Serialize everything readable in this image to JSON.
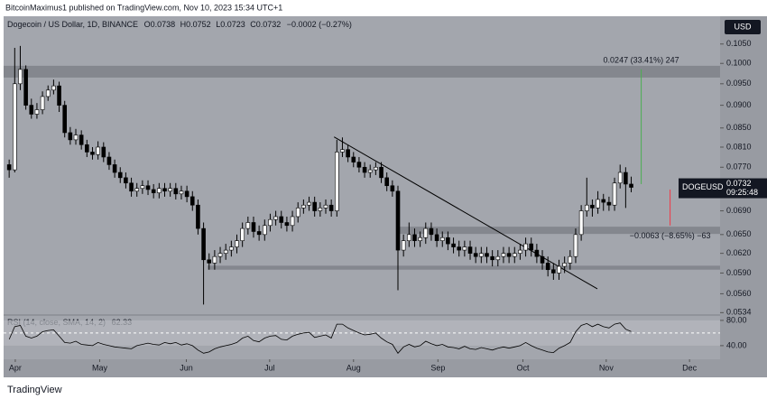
{
  "header": {
    "published": "BitcoinMaximus1 published on TradingView.com, Nov 10, 2023 15:34 UTC+1"
  },
  "chart_data": {
    "type": "candlestick",
    "symbol": "Dogecoin / US Dollar, 1D, BINANCE",
    "ohlc_labels": [
      "O",
      "H",
      "L",
      "C"
    ],
    "change": "−0.0002 (−0.27%)",
    "currency": "USD",
    "ticker": "DOGEUSD",
    "countdown": "09:25:48",
    "log_scale": true,
    "ylim": [
      0.0532,
      0.1126
    ],
    "yticks": [
      {
        "value": 0.105,
        "label": "0.1050"
      },
      {
        "value": 0.1,
        "label": "0.1000"
      },
      {
        "value": 0.095,
        "label": "0.0950"
      },
      {
        "value": 0.09,
        "label": "0.0900"
      },
      {
        "value": 0.085,
        "label": "0.0850"
      },
      {
        "value": 0.081,
        "label": "0.0810"
      },
      {
        "value": 0.077,
        "label": "0.0770"
      },
      {
        "value": 0.069,
        "label": "0.0690"
      },
      {
        "value": 0.065,
        "label": "0.0650"
      },
      {
        "value": 0.062,
        "label": "0.0620"
      },
      {
        "value": 0.059,
        "label": "0.0590"
      },
      {
        "value": 0.056,
        "label": "0.0560"
      },
      0.0534
    ],
    "xlim": [
      -1,
      128
    ],
    "xticks": [
      {
        "value": 1.1,
        "label": "Apr"
      },
      {
        "value": 16.3,
        "label": "May"
      },
      {
        "value": 31.9,
        "label": "Jun"
      },
      {
        "value": 46.9,
        "label": "Jul"
      },
      {
        "value": 62,
        "label": "Aug"
      },
      {
        "value": 77.2,
        "label": "Sep"
      },
      {
        "value": 92.5,
        "label": "Oct"
      },
      {
        "value": 107.5,
        "label": "Nov"
      },
      {
        "value": 122.5,
        "label": "Dec"
      }
    ],
    "open": [
      0.0775,
      0.0765,
      0.095,
      0.0985,
      0.09,
      0.088,
      0.089,
      0.092,
      0.0935,
      0.0945,
      0.09,
      0.084,
      0.0825,
      0.0835,
      0.0815,
      0.08,
      0.0795,
      0.081,
      0.079,
      0.0775,
      0.076,
      0.075,
      0.074,
      0.0725,
      0.073,
      0.0735,
      0.0728,
      0.0722,
      0.073,
      0.0725,
      0.073,
      0.072,
      0.0725,
      0.0715,
      0.07,
      0.066,
      0.061,
      0.0605,
      0.0615,
      0.062,
      0.0625,
      0.063,
      0.064,
      0.066,
      0.067,
      0.0655,
      0.065,
      0.0665,
      0.0675,
      0.068,
      0.067,
      0.0665,
      0.068,
      0.0695,
      0.07,
      0.0705,
      0.069,
      0.0695,
      0.07,
      0.069,
      0.08,
      0.0805,
      0.079,
      0.078,
      0.077,
      0.076,
      0.0765,
      0.077,
      0.075,
      0.0735,
      0.0725,
      0.0625,
      0.064,
      0.065,
      0.064,
      0.0645,
      0.066,
      0.065,
      0.064,
      0.0645,
      0.0635,
      0.063,
      0.0625,
      0.063,
      0.062,
      0.0615,
      0.062,
      0.0615,
      0.061,
      0.0615,
      0.062,
      0.0615,
      0.062,
      0.0625,
      0.0635,
      0.0625,
      0.0615,
      0.0605,
      0.0595,
      0.059,
      0.06,
      0.0605,
      0.0615,
      0.065,
      0.069,
      0.07,
      0.0695,
      0.071,
      0.0705,
      0.07,
      0.074,
      0.076,
      0.0738
    ],
    "high": [
      0.0785,
      0.104,
      0.1045,
      0.0995,
      0.0915,
      0.0905,
      0.0932,
      0.0946,
      0.096,
      0.0955,
      0.091,
      0.0852,
      0.0848,
      0.0845,
      0.0825,
      0.081,
      0.0822,
      0.082,
      0.08,
      0.0785,
      0.077,
      0.076,
      0.075,
      0.074,
      0.0745,
      0.0745,
      0.0738,
      0.074,
      0.074,
      0.074,
      0.074,
      0.0735,
      0.0735,
      0.0725,
      0.071,
      0.067,
      0.062,
      0.0625,
      0.063,
      0.0635,
      0.064,
      0.065,
      0.067,
      0.068,
      0.068,
      0.0665,
      0.0675,
      0.0685,
      0.069,
      0.069,
      0.068,
      0.069,
      0.0705,
      0.071,
      0.0715,
      0.0715,
      0.0705,
      0.071,
      0.071,
      0.0825,
      0.083,
      0.0815,
      0.08,
      0.079,
      0.078,
      0.0775,
      0.078,
      0.078,
      0.076,
      0.0745,
      0.0735,
      0.065,
      0.067,
      0.066,
      0.0655,
      0.067,
      0.067,
      0.066,
      0.0655,
      0.0655,
      0.0645,
      0.064,
      0.064,
      0.064,
      0.063,
      0.063,
      0.063,
      0.0625,
      0.0625,
      0.063,
      0.063,
      0.063,
      0.0635,
      0.0645,
      0.0645,
      0.0635,
      0.0625,
      0.0615,
      0.0605,
      0.061,
      0.0615,
      0.0625,
      0.066,
      0.07,
      0.075,
      0.071,
      0.0725,
      0.072,
      0.0715,
      0.075,
      0.0775,
      0.077,
      0.0752
    ],
    "low": [
      0.075,
      0.076,
      0.0935,
      0.089,
      0.087,
      0.087,
      0.088,
      0.091,
      0.0925,
      0.0885,
      0.083,
      0.0815,
      0.0815,
      0.0805,
      0.079,
      0.0785,
      0.0785,
      0.078,
      0.0765,
      0.075,
      0.074,
      0.073,
      0.0715,
      0.0715,
      0.072,
      0.0718,
      0.0712,
      0.0712,
      0.0715,
      0.0715,
      0.071,
      0.071,
      0.0705,
      0.069,
      0.065,
      0.0545,
      0.0595,
      0.0595,
      0.0605,
      0.061,
      0.0615,
      0.062,
      0.063,
      0.065,
      0.0645,
      0.064,
      0.064,
      0.0655,
      0.0665,
      0.066,
      0.0655,
      0.0655,
      0.067,
      0.0685,
      0.069,
      0.068,
      0.068,
      0.0685,
      0.068,
      0.068,
      0.079,
      0.078,
      0.077,
      0.076,
      0.075,
      0.075,
      0.0755,
      0.074,
      0.0725,
      0.0715,
      0.0565,
      0.0615,
      0.063,
      0.063,
      0.063,
      0.0635,
      0.064,
      0.063,
      0.063,
      0.0625,
      0.062,
      0.0615,
      0.0615,
      0.061,
      0.0605,
      0.0605,
      0.0605,
      0.06,
      0.06,
      0.0605,
      0.0605,
      0.0605,
      0.061,
      0.0615,
      0.0615,
      0.0605,
      0.0595,
      0.0585,
      0.058,
      0.058,
      0.059,
      0.0595,
      0.0605,
      0.064,
      0.068,
      0.068,
      0.0685,
      0.069,
      0.069,
      0.069,
      0.073,
      0.0695,
      0.0723
    ],
    "close": [
      0.0765,
      0.095,
      0.0985,
      0.09,
      0.088,
      0.089,
      0.092,
      0.0935,
      0.0945,
      0.09,
      0.084,
      0.0825,
      0.0835,
      0.0815,
      0.08,
      0.0795,
      0.081,
      0.079,
      0.0775,
      0.076,
      0.075,
      0.074,
      0.0725,
      0.073,
      0.0735,
      0.0728,
      0.0722,
      0.073,
      0.0725,
      0.073,
      0.072,
      0.0725,
      0.0715,
      0.07,
      0.066,
      0.061,
      0.0605,
      0.0615,
      0.062,
      0.0625,
      0.063,
      0.064,
      0.066,
      0.067,
      0.0655,
      0.065,
      0.0665,
      0.0675,
      0.068,
      0.067,
      0.0665,
      0.068,
      0.0695,
      0.07,
      0.0705,
      0.069,
      0.0695,
      0.07,
      0.069,
      0.08,
      0.0805,
      0.079,
      0.078,
      0.077,
      0.076,
      0.0765,
      0.077,
      0.075,
      0.0735,
      0.0725,
      0.0625,
      0.064,
      0.065,
      0.064,
      0.0645,
      0.066,
      0.065,
      0.064,
      0.0645,
      0.0635,
      0.063,
      0.0625,
      0.063,
      0.062,
      0.0615,
      0.062,
      0.0615,
      0.061,
      0.0615,
      0.062,
      0.0615,
      0.062,
      0.0625,
      0.0635,
      0.0625,
      0.0615,
      0.0605,
      0.0595,
      0.059,
      0.06,
      0.0605,
      0.0615,
      0.065,
      0.069,
      0.07,
      0.0695,
      0.071,
      0.0705,
      0.07,
      0.074,
      0.076,
      0.0738,
      0.0732
    ],
    "up_color": "#ffffff",
    "down_color": "#000000",
    "zones": [
      {
        "from": 0.0965,
        "to": 0.0994,
        "start": -1
      },
      {
        "from": 0.0651,
        "to": 0.0663,
        "start": 69.8
      },
      {
        "from": 0.0595,
        "to": 0.0601,
        "start": 35.7
      }
    ],
    "trendline": {
      "x": [
        58.5,
        105.9
      ],
      "y": [
        0.0831,
        0.0567
      ]
    },
    "measures": [
      {
        "label": "0.0247 (33.41%) 247",
        "from": 0.0738,
        "to": 0.0985,
        "x": 113.8,
        "color": "#4caf50"
      },
      {
        "label": "−0.0063 (−8.65%) −63",
        "from": 0.0728,
        "to": 0.0665,
        "x": 119,
        "color": "#f23645"
      }
    ],
    "rsi": {
      "title": "RSI (14, close, SMA, 14, 2)",
      "color": "#000000",
      "ylim": [
        27,
        87
      ],
      "yticks": [
        {
          "value": 80,
          "label": "80.00"
        },
        {
          "value": 40,
          "label": "40.00"
        }
      ],
      "values": [
        50,
        70,
        72,
        55,
        52,
        55,
        62,
        64,
        65,
        55,
        45,
        44,
        47,
        42,
        41,
        40,
        45,
        42,
        40,
        38,
        37,
        36,
        35,
        40,
        42,
        44,
        42,
        41,
        45,
        43,
        45,
        41,
        43,
        40,
        33,
        28,
        30,
        35,
        38,
        40,
        42,
        45,
        52,
        55,
        48,
        46,
        52,
        55,
        56,
        50,
        49,
        55,
        58,
        60,
        61,
        53,
        55,
        57,
        52,
        74,
        74,
        68,
        64,
        60,
        57,
        58,
        60,
        52,
        46,
        42,
        28,
        38,
        42,
        38,
        40,
        47,
        43,
        40,
        42,
        38,
        37,
        35,
        39,
        35,
        34,
        37,
        35,
        33,
        36,
        38,
        36,
        38,
        40,
        45,
        40,
        36,
        33,
        30,
        29,
        36,
        40,
        45,
        62,
        72,
        75,
        70,
        74,
        70,
        68,
        74,
        76,
        66,
        62.33
      ]
    }
  },
  "footer": {
    "brand": "TradingView"
  }
}
